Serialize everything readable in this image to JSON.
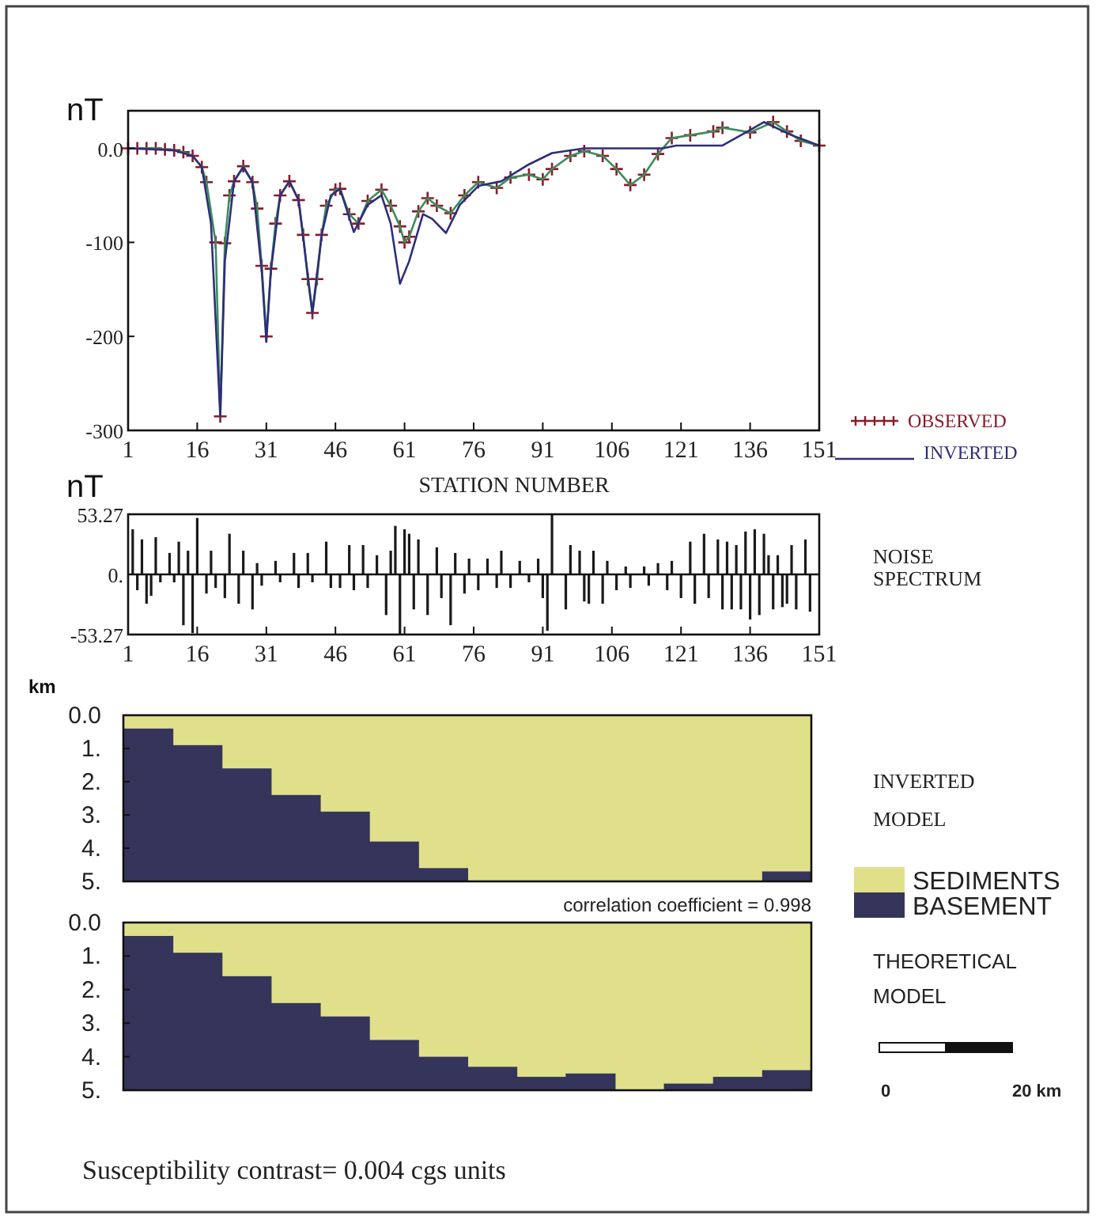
{
  "chart_data": [
    {
      "type": "line",
      "xlabel": "STATION NUMBER",
      "ylabel": "nT",
      "xlim": [
        1,
        151
      ],
      "xticks": [
        1,
        16,
        31,
        46,
        61,
        76,
        91,
        106,
        121,
        136,
        151
      ],
      "ylim": [
        -300,
        40
      ],
      "yticks": [
        {
          "value": 0,
          "label": "0.0"
        },
        -100,
        -200,
        -300
      ],
      "legend": "right",
      "grid": false,
      "series": [
        {
          "name": "OBSERVED",
          "type": "scatter",
          "marker": "cross",
          "color": "#8b1a2b",
          "x": [
            1,
            3,
            5,
            7,
            9,
            11,
            13,
            15,
            17,
            18,
            20,
            21,
            22,
            23,
            24,
            26,
            28,
            29,
            30,
            31,
            32,
            33,
            34,
            36,
            38,
            39,
            40,
            41,
            42,
            43,
            44,
            46,
            47,
            49,
            51,
            53,
            56,
            58,
            60,
            61,
            62,
            64,
            66,
            68,
            71,
            74,
            77,
            81,
            84,
            88,
            91,
            93,
            97,
            100,
            104,
            107,
            110,
            113,
            116,
            119,
            123,
            128,
            130,
            136,
            141,
            144,
            147,
            151
          ],
          "values": [
            0,
            0,
            0,
            0,
            -1,
            -2,
            -4,
            -8,
            -20,
            -36,
            -100,
            -285,
            -101,
            -50,
            -35,
            -19,
            -36,
            -64,
            -125,
            -200,
            -128,
            -80,
            -50,
            -35,
            -55,
            -92,
            -139,
            -175,
            -139,
            -92,
            -61,
            -44,
            -43,
            -70,
            -80,
            -56,
            -44,
            -61,
            -83,
            -100,
            -94,
            -67,
            -53,
            -61,
            -69,
            -50,
            -36,
            -42,
            -31,
            -28,
            -33,
            -22,
            -8,
            -3,
            -8,
            -22,
            -39,
            -28,
            -6,
            11,
            14,
            18,
            22,
            17,
            28,
            18,
            8,
            3
          ]
        },
        {
          "type": "line",
          "color": "#3c8c5a",
          "x": [
            1,
            3,
            5,
            7,
            9,
            11,
            13,
            15,
            17,
            18,
            20,
            21,
            22,
            23,
            24,
            26,
            28,
            29,
            30,
            31,
            32,
            33,
            34,
            36,
            38,
            39,
            40,
            41,
            42,
            43,
            44,
            46,
            47,
            49,
            51,
            53,
            56,
            58,
            60,
            61,
            62,
            64,
            66,
            68,
            71,
            74,
            77,
            81,
            84,
            88,
            91,
            93,
            97,
            100,
            104,
            107,
            110,
            113,
            116,
            119,
            123,
            128,
            130,
            136,
            141,
            144,
            147,
            151
          ],
          "values": [
            0,
            0,
            0,
            0,
            -1,
            -2,
            -4,
            -8,
            -20,
            -36,
            -100,
            -285,
            -101,
            -50,
            -35,
            -19,
            -36,
            -64,
            -125,
            -200,
            -128,
            -80,
            -50,
            -35,
            -55,
            -92,
            -139,
            -175,
            -139,
            -92,
            -61,
            -44,
            -43,
            -70,
            -80,
            -56,
            -44,
            -61,
            -83,
            -100,
            -94,
            -67,
            -53,
            -61,
            -69,
            -50,
            -36,
            -42,
            -31,
            -28,
            -33,
            -22,
            -8,
            -3,
            -8,
            -22,
            -39,
            -28,
            -6,
            11,
            14,
            18,
            22,
            17,
            28,
            18,
            8,
            3
          ]
        },
        {
          "name": "INVERTED",
          "type": "line",
          "color": "#2e2e7a",
          "x": [
            1,
            11,
            15,
            17,
            19,
            21,
            22,
            24,
            26,
            28,
            30,
            31,
            32,
            34,
            36,
            38,
            41,
            43,
            45,
            47,
            50,
            53,
            56,
            58,
            60,
            62,
            65,
            67,
            70,
            73,
            77,
            82,
            88,
            93,
            100,
            117,
            120,
            130,
            134,
            139,
            145,
            151
          ],
          "values": [
            0,
            -2,
            -8,
            -20,
            -80,
            -285,
            -120,
            -35,
            -20,
            -36,
            -130,
            -205,
            -130,
            -50,
            -35,
            -55,
            -175,
            -92,
            -50,
            -43,
            -89,
            -60,
            -50,
            -80,
            -144,
            -120,
            -70,
            -75,
            -90,
            -60,
            -40,
            -35,
            -17,
            -5,
            0,
            0,
            3,
            3,
            14,
            28,
            14,
            3
          ]
        }
      ]
    },
    {
      "type": "bar",
      "ylabel": "nT",
      "xlim": [
        1,
        151
      ],
      "xticks": [
        1,
        16,
        31,
        46,
        61,
        76,
        91,
        106,
        121,
        136,
        151
      ],
      "ylim": [
        -53.27,
        53.27
      ],
      "yticks": [
        {
          "value": 53.27,
          "label": "53.27"
        },
        {
          "value": 0,
          "label": "0."
        },
        {
          "value": -53.27,
          "label": "-53.27"
        }
      ],
      "color": "#1a1a1a",
      "annotations": [
        "NOISE SPECTRUM"
      ],
      "x": [
        2,
        3,
        4,
        5,
        6,
        7,
        8,
        10,
        11,
        12,
        13,
        14,
        15,
        16,
        18,
        19,
        20,
        22,
        23,
        25,
        26,
        28,
        29,
        30,
        33,
        34,
        37,
        38,
        40,
        41,
        44,
        45,
        47,
        49,
        50,
        52,
        53,
        55,
        57,
        58,
        59,
        60,
        61,
        62,
        63,
        64,
        66,
        68,
        69,
        71,
        72,
        74,
        75,
        77,
        79,
        81,
        82,
        84,
        86,
        88,
        90,
        91,
        92,
        93,
        96,
        97,
        99,
        100,
        101,
        102,
        104,
        105,
        107,
        109,
        110,
        113,
        114,
        116,
        118,
        119,
        121,
        123,
        124,
        126,
        127,
        129,
        130,
        131,
        132,
        133,
        134,
        135,
        136,
        137,
        138,
        139,
        140,
        141,
        142,
        143,
        144,
        145,
        146,
        148,
        149
      ],
      "values": [
        40,
        -14,
        31,
        -26,
        -19,
        33,
        -7,
        19,
        -7,
        29,
        -45,
        21,
        -52,
        50,
        -17,
        21,
        -12,
        -21,
        36,
        -26,
        21,
        -31,
        10,
        -10,
        12,
        -7,
        19,
        -12,
        19,
        -7,
        29,
        -12,
        -12,
        26,
        -14,
        26,
        -12,
        17,
        -36,
        21,
        43,
        -53,
        40,
        36,
        -31,
        31,
        -36,
        24,
        -21,
        -45,
        19,
        -17,
        14,
        -14,
        14,
        -12,
        21,
        -12,
        12,
        -7,
        14,
        -21,
        -50,
        53,
        -31,
        26,
        21,
        -24,
        -26,
        21,
        -26,
        12,
        -14,
        7,
        -12,
        7,
        -10,
        10,
        -14,
        12,
        -21,
        29,
        -26,
        36,
        -21,
        31,
        -31,
        29,
        -31,
        26,
        -31,
        38,
        -40,
        40,
        -36,
        36,
        17,
        -31,
        17,
        -29,
        -26,
        26,
        -31,
        31,
        -33
      ]
    },
    {
      "type": "bar",
      "stacked": true,
      "ylabel": "km",
      "ylim": [
        5,
        0
      ],
      "yticks": [
        {
          "value": 0,
          "label": "0.0"
        },
        {
          "value": 1,
          "label": "1."
        },
        {
          "value": 2,
          "label": "2."
        },
        {
          "value": 3,
          "label": "3."
        },
        {
          "value": 4,
          "label": "4."
        },
        {
          "value": 5,
          "label": "5."
        }
      ],
      "tick_labels": "y",
      "legend": "right",
      "categories": [
        null,
        null,
        null,
        null,
        null,
        null,
        null,
        null,
        null,
        null,
        null,
        null,
        null,
        null
      ],
      "series": [
        {
          "name": "SEDIMENTS",
          "color": "#e0e08a",
          "values": [
            0.4,
            0.9,
            1.6,
            2.4,
            2.9,
            3.8,
            4.6,
            5,
            5,
            5,
            5,
            5,
            5,
            4.7
          ]
        },
        {
          "name": "BASEMENT",
          "color": "#35345a",
          "values": [
            4.6,
            4.1,
            3.4,
            2.6,
            2.1,
            1.2,
            0.4,
            0,
            0,
            0,
            0,
            0,
            0,
            0.3
          ]
        }
      ],
      "annotations": [
        "correlation coefficient = 0.998",
        "INVERTED MODEL"
      ]
    },
    {
      "type": "bar",
      "stacked": true,
      "ylim": [
        5,
        0
      ],
      "yticks": [
        {
          "value": 0,
          "label": "0.0"
        },
        {
          "value": 1,
          "label": "1."
        },
        {
          "value": 2,
          "label": "2."
        },
        {
          "value": 3,
          "label": "3."
        },
        {
          "value": 4,
          "label": "4."
        },
        {
          "value": 5,
          "label": "5."
        }
      ],
      "tick_labels": "y",
      "categories": [
        null,
        null,
        null,
        null,
        null,
        null,
        null,
        null,
        null,
        null,
        null,
        null,
        null,
        null
      ],
      "series": [
        {
          "color": "#e0e08a",
          "values": [
            0.4,
            0.9,
            1.6,
            2.4,
            2.8,
            3.5,
            4.0,
            4.3,
            4.6,
            4.5,
            5,
            4.8,
            4.6,
            4.4
          ]
        },
        {
          "color": "#35345a",
          "values": [
            4.6,
            4.1,
            3.4,
            2.6,
            2.2,
            1.5,
            1.0,
            0.7,
            0.4,
            0.5,
            0,
            0.2,
            0.4,
            0.6
          ]
        }
      ],
      "annotations": [
        "THEORETICAL MODEL",
        "Susceptibility contrast= 0.004 cgs units",
        "0",
        "20 km"
      ]
    }
  ]
}
